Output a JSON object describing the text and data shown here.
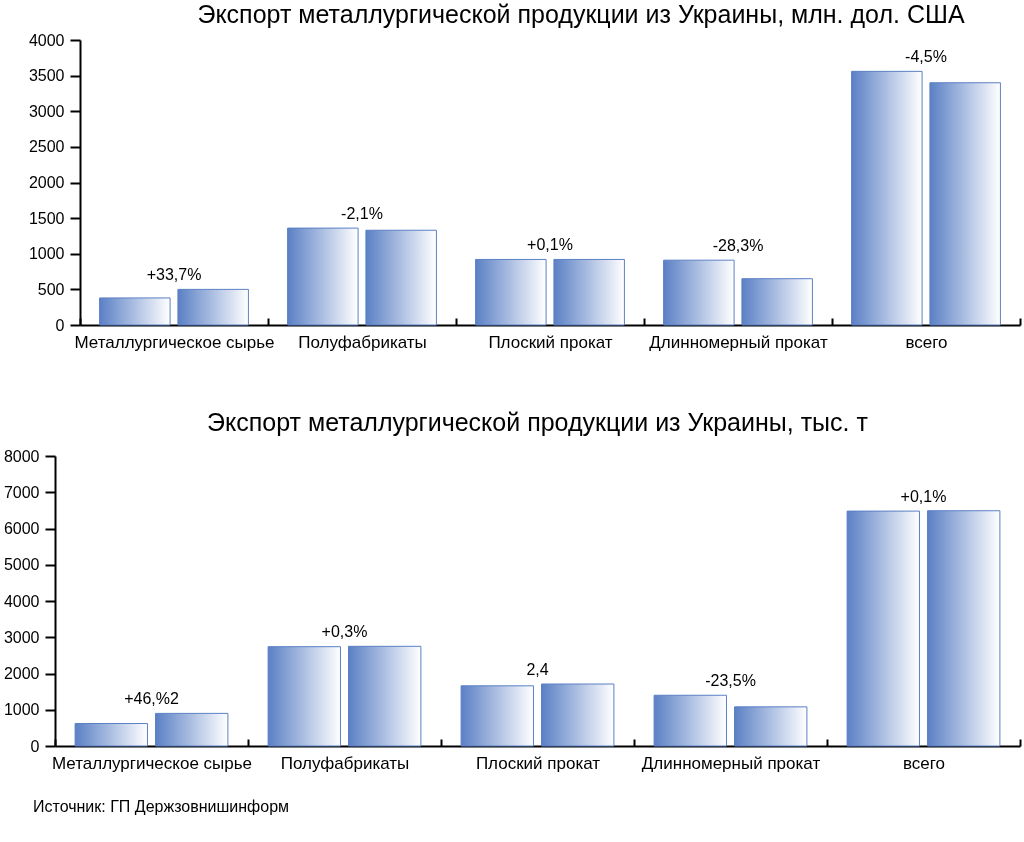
{
  "chart_data": [
    {
      "type": "bar",
      "title": "Экспорт металлургической продукции из Украины, млн. дол. США",
      "categories": [
        "Металлургическое сырье",
        "Полуфабрикаты",
        "Плоский прокат",
        "Длинномерный прокат",
        "всего"
      ],
      "series": [
        {
          "color": "#5b80c5",
          "values": [
            380,
            1360,
            920,
            910,
            3560
          ]
        },
        {
          "color": "#5b80c5",
          "values": [
            500,
            1330,
            920,
            650,
            3400
          ]
        }
      ],
      "ylim": [
        0,
        4000
      ],
      "yticks": [
        0,
        500,
        1000,
        1500,
        2000,
        2500,
        3000,
        3500,
        4000
      ],
      "annotations": [
        {
          "text": "+33,7%",
          "x": "Металлургическое сырье",
          "y": 500
        },
        {
          "text": "-2,1%",
          "x": "Полуфабрикаты",
          "y": 1360
        },
        {
          "text": "+0,1%",
          "x": "Плоский прокат",
          "y": 920
        },
        {
          "text": "-28,3%",
          "x": "Длинномерный прокат",
          "y": 910
        },
        {
          "text": "-4,5%",
          "x": "всего",
          "y": 3560
        }
      ]
    },
    {
      "type": "bar",
      "title": "Экспорт металлургической продукции из Украины, тыс. т",
      "categories": [
        "Металлургическое сырье",
        "Полуфабрикаты",
        "Плоский прокат",
        "Длинномерный прокат",
        "всего"
      ],
      "series": [
        {
          "color": "#5b80c5",
          "values": [
            620,
            2740,
            1660,
            1400,
            6480
          ]
        },
        {
          "color": "#5b80c5",
          "values": [
            900,
            2750,
            1710,
            1080,
            6490
          ]
        }
      ],
      "ylim": [
        0,
        8000
      ],
      "yticks": [
        0,
        1000,
        2000,
        3000,
        4000,
        5000,
        6000,
        7000,
        8000
      ],
      "annotations": [
        {
          "text": "+46,%2",
          "x": "Металлургическое сырье",
          "y": 900
        },
        {
          "text": "+0,3%",
          "x": "Полуфабрикаты",
          "y": 2750
        },
        {
          "text": "2,4",
          "x": "Плоский прокат",
          "y": 1710
        },
        {
          "text": "-23,5%",
          "x": "Длинномерный прокат",
          "y": 1400
        },
        {
          "text": "+0,1%",
          "x": "всего",
          "y": 6490
        },
        "Источник: ГП Держзовнишинформ"
      ]
    }
  ]
}
